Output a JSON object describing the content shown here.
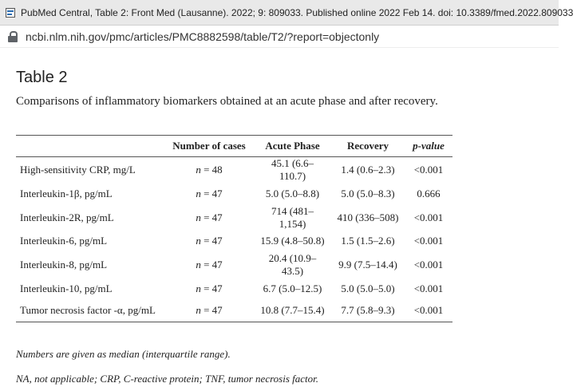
{
  "window": {
    "title": "PubMed Central, Table 2: Front Med (Lausanne). 2022; 9: 809033. Published online 2022 Feb 14. doi: 10.3389/fmed.2022.809033",
    "favicon_icon": "pmc-document-icon"
  },
  "address_bar": {
    "url": "ncbi.nlm.nih.gov/pmc/articles/PMC8882598/table/T2/?report=objectonly",
    "lock_icon": "lock-icon"
  },
  "page": {
    "title": "Table 2",
    "caption": "Comparisons of inflammatory biomarkers obtained at an acute phase and after recovery."
  },
  "table": {
    "headers": [
      "",
      "Number of cases",
      "Acute Phase",
      "Recovery",
      "p-value"
    ],
    "rows": [
      {
        "marker": "High-sensitivity CRP, mg/L",
        "n": "n = 48",
        "acute": "45.1 (6.6–110.7)",
        "recovery": "1.4 (0.6–2.3)",
        "p": "<0.001"
      },
      {
        "marker": "Interleukin-1β, pg/mL",
        "n": "n = 47",
        "acute": "5.0 (5.0–8.8)",
        "recovery": "5.0 (5.0–8.3)",
        "p": "0.666"
      },
      {
        "marker": "Interleukin-2R, pg/mL",
        "n": "n = 47",
        "acute": "714 (481–1,154)",
        "recovery": "410 (336–508)",
        "p": "<0.001"
      },
      {
        "marker": "Interleukin-6, pg/mL",
        "n": "n = 47",
        "acute": "15.9 (4.8–50.8)",
        "recovery": "1.5 (1.5–2.6)",
        "p": "<0.001"
      },
      {
        "marker": "Interleukin-8, pg/mL",
        "n": "n = 47",
        "acute": "20.4 (10.9–43.5)",
        "recovery": "9.9 (7.5–14.4)",
        "p": "<0.001"
      },
      {
        "marker": "Interleukin-10, pg/mL",
        "n": "n = 47",
        "acute": "6.7 (5.0–12.5)",
        "recovery": "5.0 (5.0–5.0)",
        "p": "<0.001"
      },
      {
        "marker": "Tumor necrosis factor -α, pg/mL",
        "n": "n = 47",
        "acute": "10.8 (7.7–15.4)",
        "recovery": "7.7 (5.8–9.3)",
        "p": "<0.001"
      }
    ]
  },
  "footnotes": [
    "Numbers are given as median (interquartile range).",
    "NA, not applicable; CRP, C-reactive protein; TNF, tumor necrosis factor."
  ]
}
